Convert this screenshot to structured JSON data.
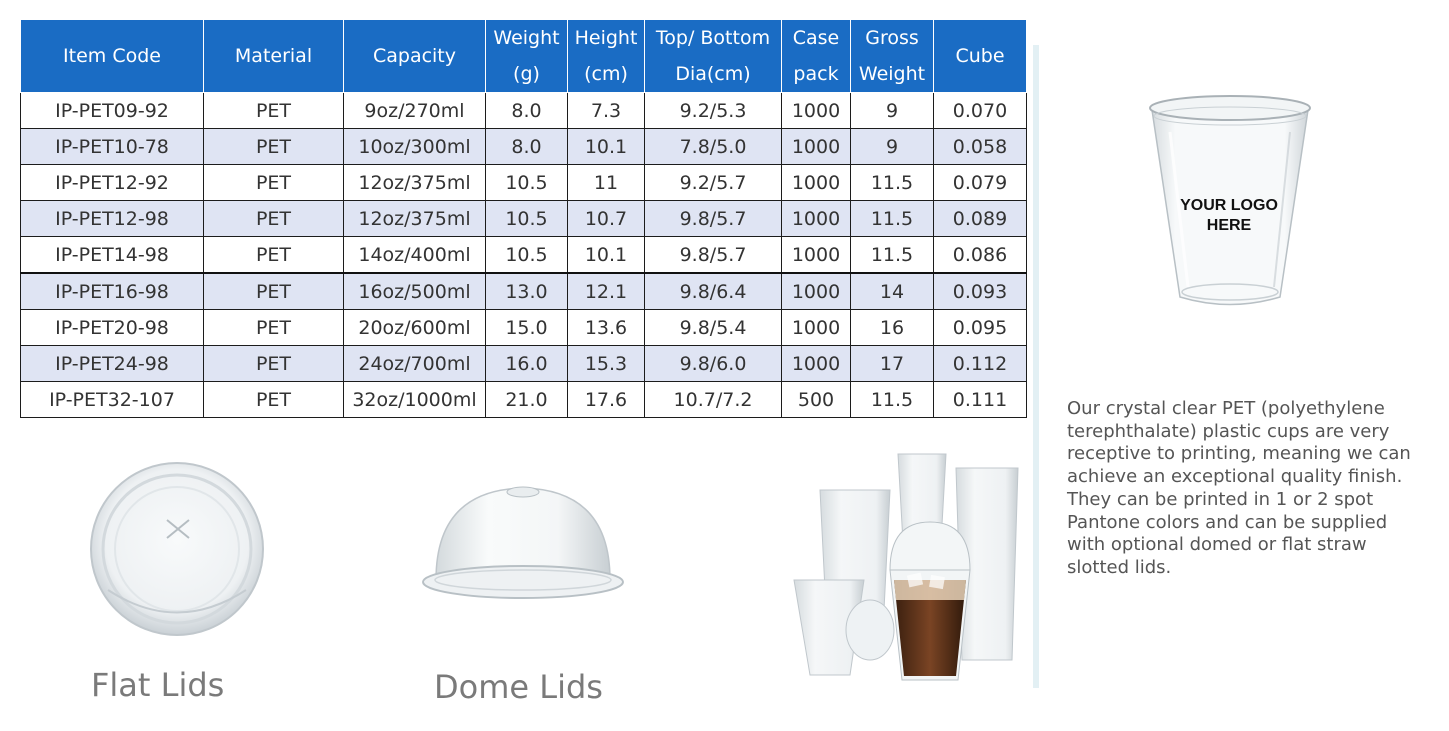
{
  "table": {
    "headers": [
      [
        "Item Code"
      ],
      [
        "Material"
      ],
      [
        "Capacity"
      ],
      [
        "Weight",
        "(g)"
      ],
      [
        "Height",
        "(cm)"
      ],
      [
        "Top/  Bottom",
        "Dia(cm)"
      ],
      [
        "Case",
        "pack"
      ],
      [
        "Gross",
        "Weight"
      ],
      [
        "Cube"
      ]
    ],
    "rows": [
      [
        "IP-PET09-92",
        "PET",
        "9oz/270ml",
        "8.0",
        "7.3",
        "9.2/5.3",
        "1000",
        "9",
        "0.070"
      ],
      [
        "IP-PET10-78",
        "PET",
        "10oz/300ml",
        "8.0",
        "10.1",
        "7.8/5.0",
        "1000",
        "9",
        "0.058"
      ],
      [
        "IP-PET12-92",
        "PET",
        "12oz/375ml",
        "10.5",
        "11",
        "9.2/5.7",
        "1000",
        "11.5",
        "0.079"
      ],
      [
        "IP-PET12-98",
        "PET",
        "12oz/375ml",
        "10.5",
        "10.7",
        "9.8/5.7",
        "1000",
        "11.5",
        "0.089"
      ],
      [
        "IP-PET14-98",
        "PET",
        "14oz/400ml",
        "10.5",
        "10.1",
        "9.8/5.7",
        "1000",
        "11.5",
        "0.086"
      ],
      [
        "IP-PET16-98",
        "PET",
        "16oz/500ml",
        "13.0",
        "12.1",
        "9.8/6.4",
        "1000",
        "14",
        "0.093"
      ],
      [
        "IP-PET20-98",
        "PET",
        "20oz/600ml",
        "15.0",
        "13.6",
        "9.8/5.4",
        "1000",
        "16",
        "0.095"
      ],
      [
        "IP-PET24-98",
        "PET",
        "24oz/700ml",
        "16.0",
        "15.3",
        "9.8/6.0",
        "1000",
        "17",
        "0.112"
      ],
      [
        "IP-PET32-107",
        "PET",
        "32oz/1000ml",
        "21.0",
        "17.6",
        "10.7/7.2",
        "500",
        "11.5",
        "0.111"
      ]
    ]
  },
  "cup_logo": {
    "line1": "YOUR LOGO",
    "line2": "HERE"
  },
  "description": "Our crystal clear PET (polyethylene terephthalate) plastic cups are very receptive to printing, meaning we can achieve an exceptional quality finish. They can be printed in 1 or 2 spot Pantone colors and can be supplied with optional domed or flat straw slotted lids.",
  "captions": {
    "flat": "Flat Lids",
    "dome": "Dome Lids"
  },
  "colors": {
    "header_bg": "#1a6cc4",
    "alt_row": "#dfe4f3"
  }
}
